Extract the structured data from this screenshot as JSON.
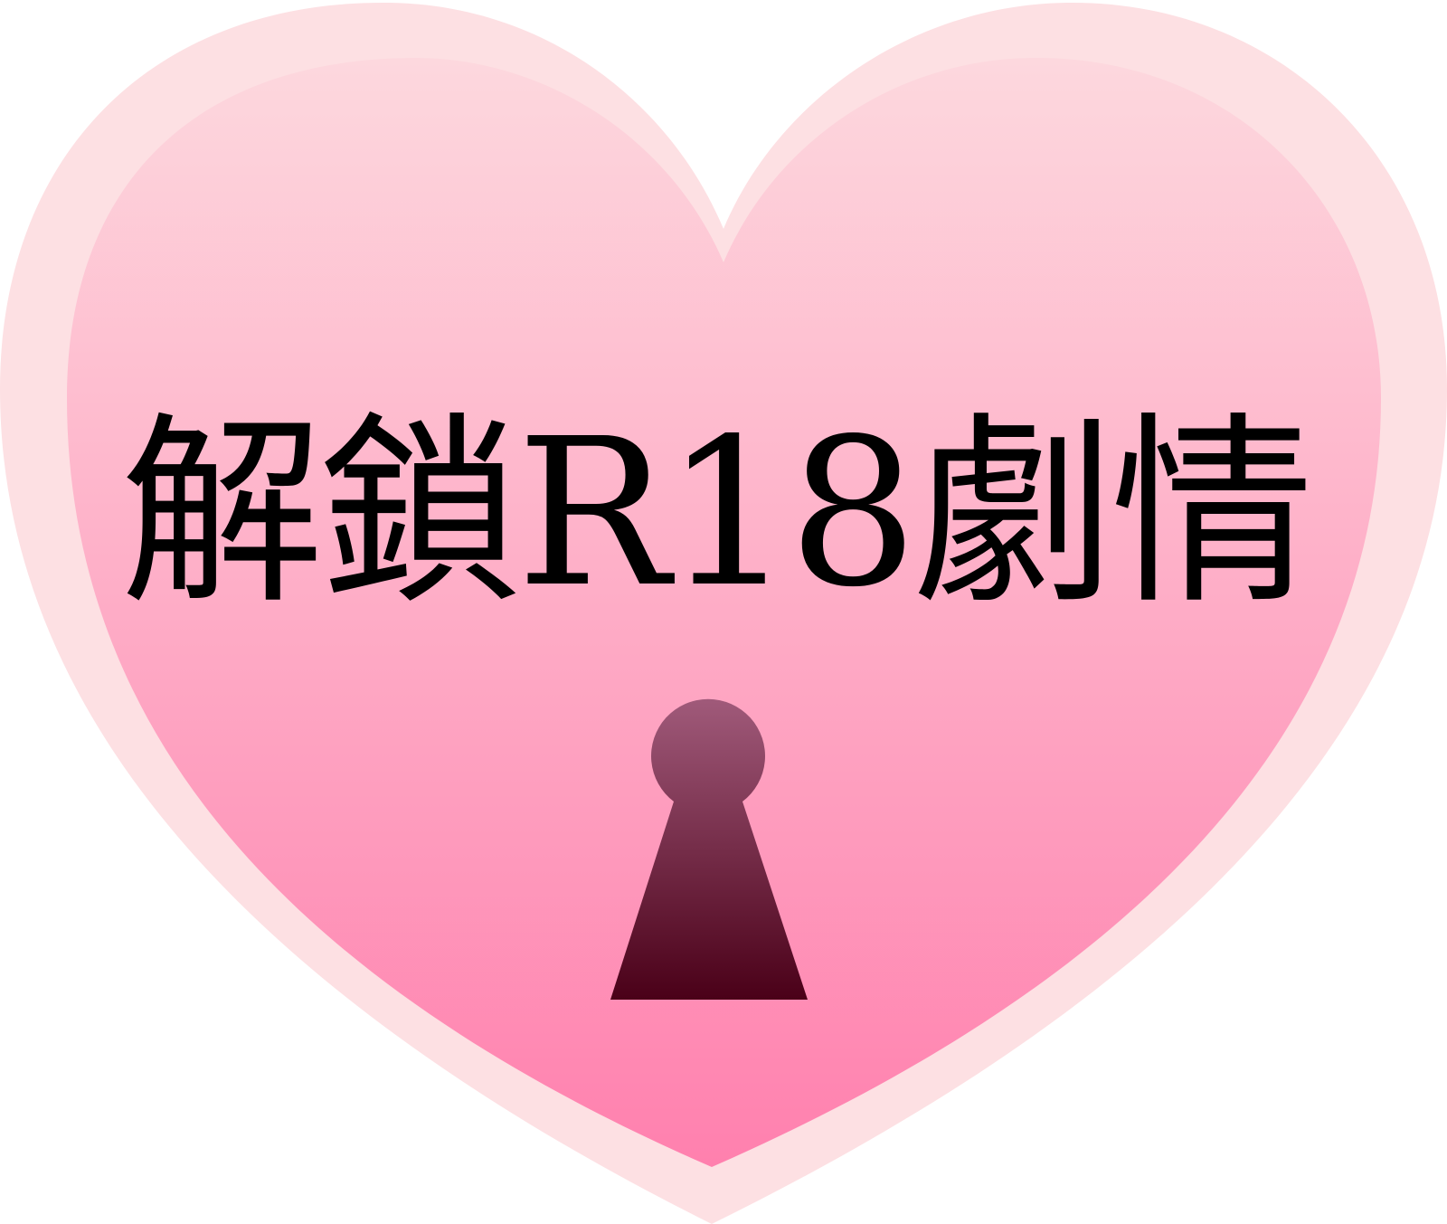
{
  "headline": {
    "text": "解鎖R18劇情"
  },
  "icons": {
    "heart": "heart-icon",
    "keyhole": "keyhole-icon"
  },
  "colors": {
    "heart_outer": "#fde0e3",
    "heart_inner_top": "#fdd8de",
    "heart_inner_bottom": "#ff80ae",
    "keyhole_top": "#a05a7a",
    "keyhole_bottom": "#4a0018",
    "text": "#000000"
  }
}
